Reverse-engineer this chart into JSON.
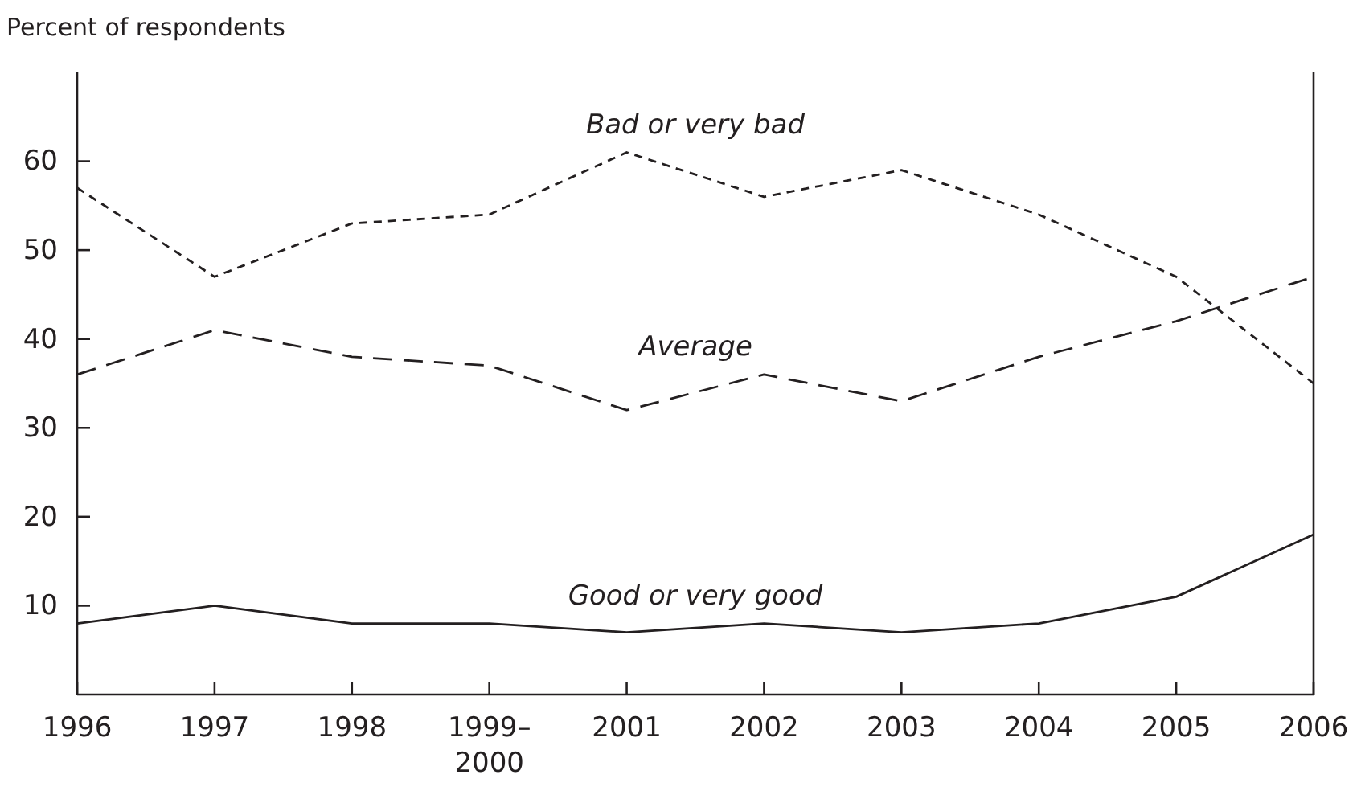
{
  "chart_data": {
    "type": "line",
    "ylabel": "Percent of respondents",
    "categories": [
      "1996",
      "1997",
      "1998",
      "1999–\n2000",
      "2001",
      "2002",
      "2003",
      "2004",
      "2005",
      "2006"
    ],
    "ylim": [
      0,
      70
    ],
    "yticks": [
      10,
      20,
      30,
      40,
      50,
      60
    ],
    "grid": false,
    "legend": false,
    "marker": "none",
    "series": [
      {
        "name": "Bad or very bad",
        "color": "#231f20",
        "line_style": "dotted",
        "values": [
          57,
          47,
          53,
          54,
          61,
          56,
          59,
          54,
          47,
          35
        ]
      },
      {
        "name": "Average",
        "color": "#231f20",
        "line_style": "dashed",
        "values": [
          36,
          41,
          38,
          37,
          32,
          36,
          33,
          38,
          42,
          47
        ]
      },
      {
        "name": "Good or very good",
        "color": "#231f20",
        "line_style": "solid",
        "values": [
          8,
          10,
          8,
          8,
          7,
          8,
          7,
          8,
          11,
          18
        ]
      }
    ]
  }
}
